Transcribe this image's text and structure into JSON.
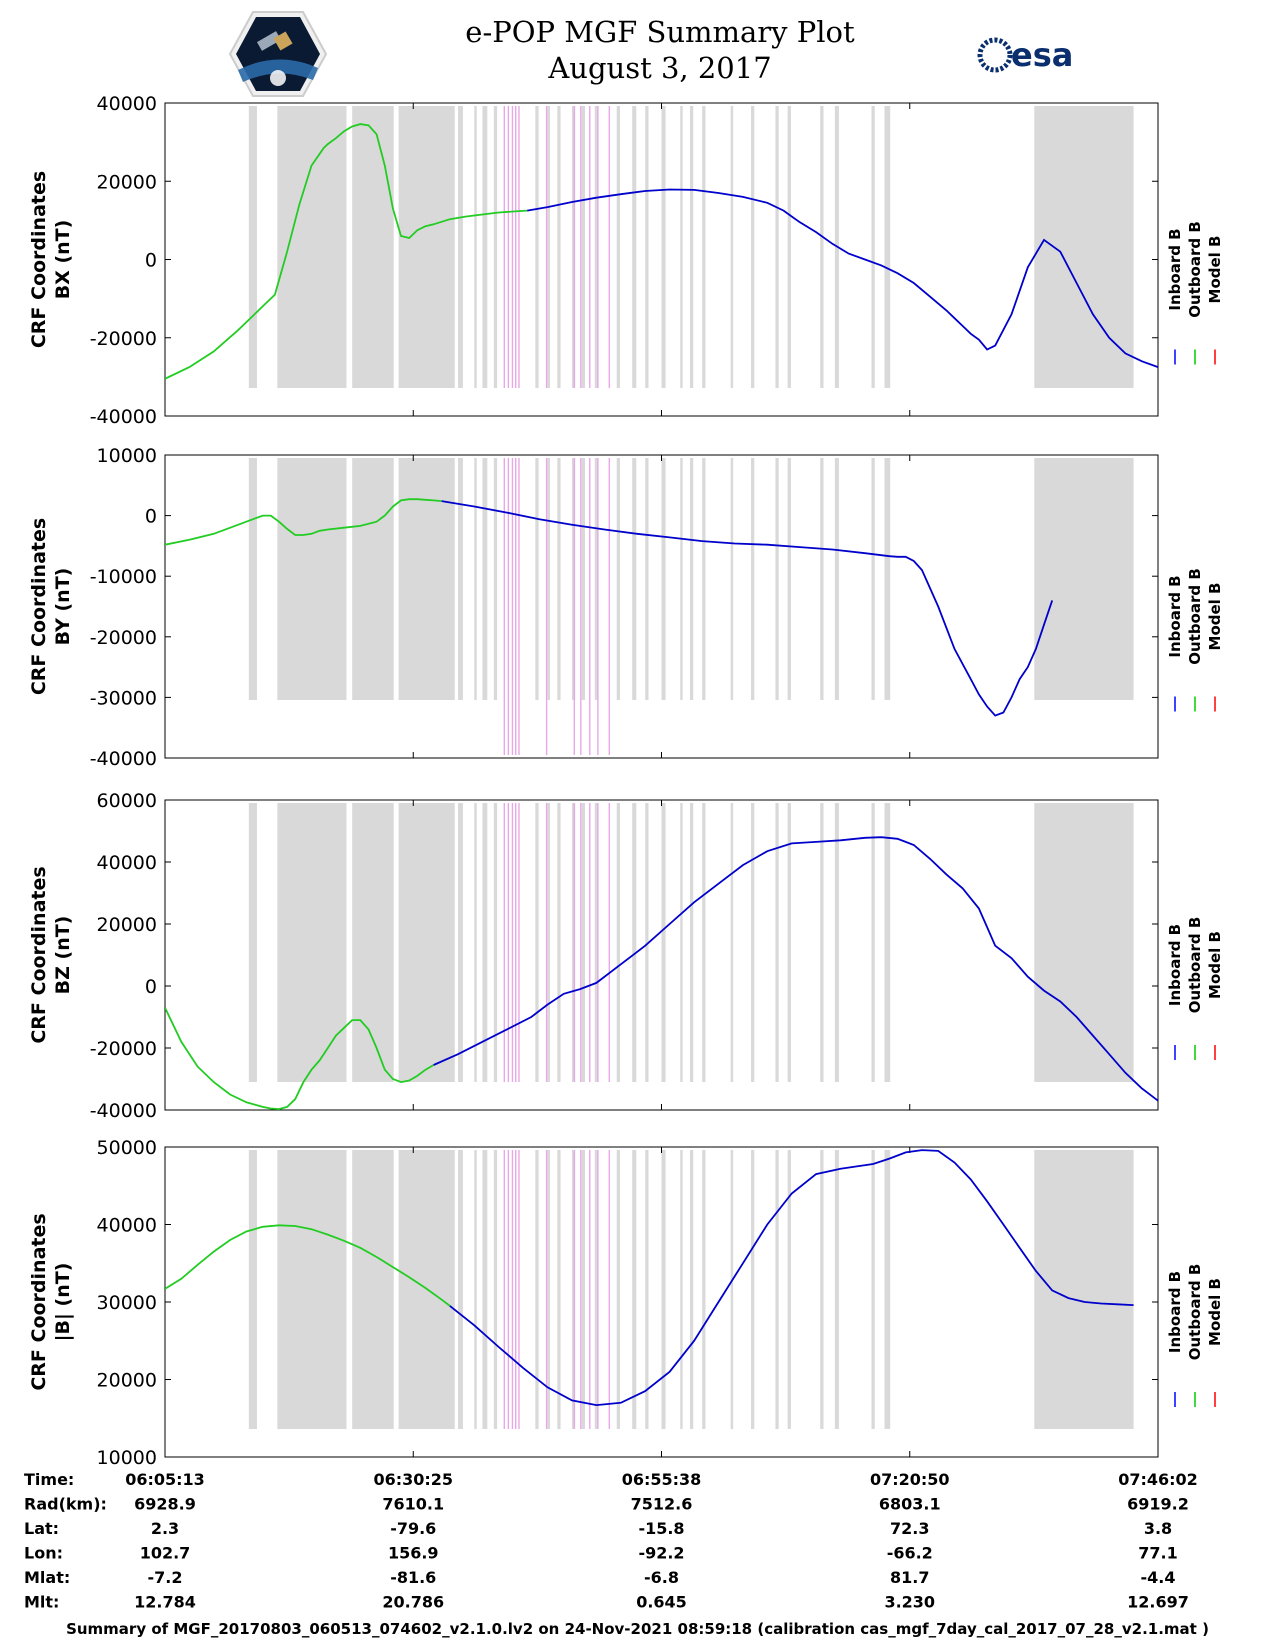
{
  "header": {
    "title": "e-POP MGF Summary Plot",
    "date": "August 3, 2017",
    "logo_left": "cassiope-mission-logo",
    "logo_right_text": "esa"
  },
  "legend": {
    "items": [
      {
        "label": "Inboard B",
        "color": "#0000ff"
      },
      {
        "label": "Outboard B",
        "color": "#00cc00"
      },
      {
        "label": "Model B",
        "color": "#ff0000"
      }
    ]
  },
  "x_ticks": [
    "06:05:13",
    "06:30:25",
    "06:55:38",
    "07:20:50",
    "07:46:02"
  ],
  "info_table": {
    "rows": [
      {
        "label": "Time:",
        "values": [
          "06:05:13",
          "06:30:25",
          "06:55:38",
          "07:20:50",
          "07:46:02"
        ]
      },
      {
        "label": "Rad(km):",
        "values": [
          "6928.9",
          "7610.1",
          "7512.6",
          "6803.1",
          "6919.2"
        ]
      },
      {
        "label": "Lat:",
        "values": [
          "2.3",
          "-79.6",
          "-15.8",
          "72.3",
          "3.8"
        ]
      },
      {
        "label": "Lon:",
        "values": [
          "102.7",
          "156.9",
          "-92.2",
          "-66.2",
          "77.1"
        ]
      },
      {
        "label": "Mlat:",
        "values": [
          "-7.2",
          "-81.6",
          "-6.8",
          "81.7",
          "-4.4"
        ]
      },
      {
        "label": "Mlt:",
        "values": [
          "12.784",
          "20.786",
          "0.645",
          "3.230",
          "12.697"
        ]
      }
    ]
  },
  "footer": "Summary of MGF_20170803_060513_074602_v2.1.0.lv2 on 24-Nov-2021 08:59:18 (calibration cas_mgf_7day_cal_2017_07_28_v2.1.mat )",
  "chart_data": [
    {
      "type": "line",
      "ylabel_line1": "CRF Coordinates",
      "ylabel_line2": "BX (nT)",
      "ylim": [
        -40000,
        40000
      ],
      "yticks": [
        -40000,
        -20000,
        0,
        20000,
        40000
      ],
      "xlim_min": [
        0,
        100.8
      ],
      "series": [
        {
          "name": "Outboard B",
          "color": "#22cc22",
          "x": [
            0,
            3,
            6,
            9,
            10,
            12,
            13.5,
            15,
            16.5,
            18,
            19.5,
            20,
            21,
            22,
            23,
            24,
            25,
            26,
            27,
            28,
            29,
            30,
            31,
            32,
            33,
            35,
            37,
            39,
            41,
            43,
            44.5
          ],
          "y": [
            -30500,
            -27500,
            -23500,
            -18000,
            -16000,
            -12000,
            -9000,
            2000,
            14000,
            24000,
            28500,
            29500,
            31000,
            32800,
            34000,
            34600,
            34300,
            32000,
            24000,
            13000,
            6000,
            5500,
            7500,
            8500,
            9000,
            10300,
            11000,
            11500,
            12000,
            12300,
            12500
          ]
        },
        {
          "name": "Inboard B",
          "color": "#0000cc",
          "x": [
            44.5,
            47,
            50,
            53,
            56,
            59,
            62,
            65,
            68,
            71,
            74,
            76,
            77,
            78,
            80,
            82,
            84,
            86,
            88,
            90,
            92,
            94,
            96,
            97,
            98,
            99,
            100,
            101,
            102,
            104,
            106,
            108,
            110,
            112,
            114,
            116,
            118,
            120,
            122,
            124,
            126
          ],
          "y": [
            12500,
            13400,
            14700,
            15800,
            16700,
            17500,
            17900,
            17800,
            17000,
            16000,
            14500,
            12500,
            11000,
            9500,
            7000,
            4000,
            1500,
            0,
            -1500,
            -3500,
            -6000,
            -9500,
            -13000,
            -15000,
            -17000,
            -19000,
            -20500,
            -23000,
            -22000,
            -14000,
            -2000,
            5000,
            2000,
            -6000,
            -14000,
            -20000,
            -24000,
            -26000,
            -27500,
            -28500,
            -29000
          ]
        }
      ]
    },
    {
      "type": "line",
      "ylabel_line1": "CRF Coordinates",
      "ylabel_line2": "BY (nT)",
      "ylim": [
        -40000,
        10000
      ],
      "yticks": [
        -40000,
        -30000,
        -20000,
        -10000,
        0,
        10000
      ],
      "series": [
        {
          "name": "Outboard B",
          "color": "#22cc22",
          "x": [
            0,
            3,
            6,
            9,
            12,
            13,
            14,
            15,
            16,
            17,
            18,
            19,
            20,
            22,
            24,
            26,
            27,
            28,
            29,
            30,
            31,
            32,
            33,
            34
          ],
          "y": [
            -4800,
            -4000,
            -3000,
            -1500,
            0,
            0,
            -1000,
            -2200,
            -3200,
            -3200,
            -3000,
            -2500,
            -2300,
            -2000,
            -1700,
            -1000,
            0,
            1500,
            2500,
            2700,
            2700,
            2600,
            2500,
            2400
          ]
        },
        {
          "name": "Inboard B",
          "color": "#0000cc",
          "x": [
            34,
            38,
            42,
            46,
            50,
            54,
            58,
            62,
            66,
            70,
            74,
            78,
            82,
            86,
            89,
            90,
            91,
            92,
            93,
            95,
            97,
            99,
            100,
            101,
            102,
            103,
            104,
            105,
            106,
            107,
            108,
            109
          ],
          "y": [
            2400,
            1500,
            500,
            -600,
            -1500,
            -2300,
            -3000,
            -3600,
            -4200,
            -4600,
            -4800,
            -5200,
            -5600,
            -6200,
            -6700,
            -6800,
            -6800,
            -7500,
            -9000,
            -15000,
            -22000,
            -27000,
            -29500,
            -31500,
            -33000,
            -32500,
            -30000,
            -27000,
            -25000,
            -22000,
            -18000,
            -14000
          ]
        }
      ]
    },
    {
      "type": "line",
      "ylabel_line1": "CRF Coordinates",
      "ylabel_line2": "BZ (nT)",
      "ylim": [
        -40000,
        60000
      ],
      "yticks": [
        -40000,
        -20000,
        0,
        20000,
        40000,
        60000
      ],
      "series": [
        {
          "name": "Outboard B",
          "color": "#22cc22",
          "x": [
            0,
            2,
            4,
            6,
            8,
            10,
            12,
            13,
            14,
            15,
            16,
            17,
            18,
            19,
            20,
            21,
            22,
            23,
            24,
            25,
            26,
            27,
            28,
            29,
            30,
            31,
            32,
            33
          ],
          "y": [
            -7000,
            -18000,
            -26000,
            -31000,
            -35000,
            -37500,
            -39000,
            -39500,
            -39700,
            -39000,
            -36500,
            -31000,
            -27000,
            -24000,
            -20000,
            -16000,
            -13500,
            -11000,
            -11000,
            -14000,
            -20000,
            -27000,
            -30000,
            -31000,
            -30500,
            -29000,
            -27000,
            -25500
          ]
        },
        {
          "name": "Inboard B",
          "color": "#0000cc",
          "x": [
            33,
            36,
            39,
            42,
            45,
            47,
            49,
            51,
            53,
            56,
            59,
            62,
            65,
            68,
            71,
            74,
            77,
            80,
            83,
            86,
            88,
            90,
            91,
            92,
            94,
            96,
            98,
            100,
            101,
            102,
            104,
            106,
            108,
            110,
            112,
            114,
            116,
            118,
            120,
            122
          ],
          "y": [
            -25500,
            -22000,
            -18000,
            -14000,
            -10000,
            -6000,
            -2500,
            -1000,
            1000,
            7000,
            13000,
            20000,
            27000,
            33000,
            39000,
            43500,
            46000,
            46500,
            47000,
            47800,
            48000,
            47500,
            46500,
            45500,
            41000,
            36000,
            31500,
            25000,
            19000,
            13000,
            9000,
            3000,
            -1500,
            -5000,
            -10000,
            -16000,
            -22000,
            -28000,
            -33000,
            -37000
          ]
        }
      ]
    },
    {
      "type": "line",
      "ylabel_line1": "CRF Coordinates",
      "ylabel_line2": "|B| (nT)",
      "ylim": [
        10000,
        50000
      ],
      "yticks": [
        10000,
        20000,
        30000,
        40000,
        50000
      ],
      "series": [
        {
          "name": "Outboard B",
          "color": "#22cc22",
          "x": [
            0,
            2,
            4,
            6,
            8,
            10,
            12,
            14,
            16,
            18,
            20,
            22,
            24,
            26,
            28,
            30,
            32,
            34,
            35
          ],
          "y": [
            31700,
            33000,
            34800,
            36500,
            38000,
            39100,
            39700,
            39900,
            39800,
            39400,
            38700,
            37900,
            37000,
            35800,
            34500,
            33200,
            31800,
            30300,
            29500
          ]
        },
        {
          "name": "Inboard B",
          "color": "#0000cc",
          "x": [
            35,
            38,
            41,
            44,
            47,
            50,
            53,
            56,
            59,
            62,
            65,
            68,
            71,
            74,
            77,
            80,
            83,
            85,
            87,
            89,
            91,
            93,
            95,
            97,
            99,
            101,
            103,
            105,
            107,
            109,
            111,
            113,
            115,
            117,
            119
          ],
          "y": [
            29500,
            27000,
            24200,
            21500,
            19000,
            17300,
            16700,
            17000,
            18500,
            21000,
            25000,
            30000,
            35000,
            40000,
            44000,
            46500,
            47200,
            47500,
            47800,
            48500,
            49300,
            49600,
            49500,
            48000,
            45800,
            43000,
            40000,
            37000,
            34000,
            31500,
            30500,
            30000,
            29800,
            29700,
            29600
          ]
        }
      ]
    }
  ]
}
